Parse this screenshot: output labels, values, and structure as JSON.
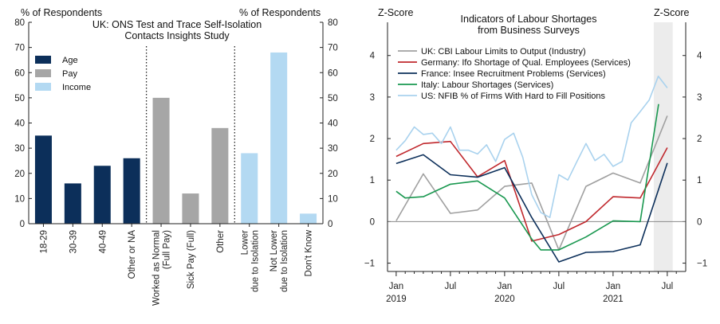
{
  "chart_data": [
    {
      "type": "bar",
      "title": "UK: ONS Test and Trace Self-Isolation Contacts Insights Study",
      "title_lines": [
        "UK: ONS Test and Trace Self-Isolation",
        "Contacts Insights Study"
      ],
      "ylabel_left": "% of Respondents",
      "ylabel_right": "% of Respondents",
      "ylim": [
        0,
        80
      ],
      "yticks": [
        0,
        10,
        20,
        30,
        40,
        50,
        60,
        70,
        80
      ],
      "legend": [
        {
          "name": "Age",
          "color": "#0c2f5a"
        },
        {
          "name": "Pay",
          "color": "#a6a6a6"
        },
        {
          "name": "Income",
          "color": "#b3d9f2"
        }
      ],
      "groups": [
        {
          "name": "Age",
          "color": "#0c2f5a",
          "categories": [
            [
              "18-29"
            ],
            [
              "30-39"
            ],
            [
              "40-49"
            ],
            [
              "Other or NA"
            ]
          ],
          "values": [
            35,
            16,
            23,
            26
          ]
        },
        {
          "name": "Pay",
          "color": "#a6a6a6",
          "categories": [
            [
              "Worked as Normal",
              "(Full Pay)"
            ],
            [
              "Sick Pay (Full)"
            ],
            [
              "Other"
            ]
          ],
          "values": [
            50,
            12,
            38
          ]
        },
        {
          "name": "Income",
          "color": "#b3d9f2",
          "categories": [
            [
              "Lower",
              "due to Isolation"
            ],
            [
              "Not Lower",
              "due to Isolation"
            ],
            [
              "Don't Know"
            ]
          ],
          "values": [
            28,
            68,
            4
          ]
        }
      ]
    },
    {
      "type": "line",
      "title": "Indicators of Labour Shortages from Business Surveys",
      "title_lines": [
        "Indicators of Labour Shortages",
        "from Business Surveys"
      ],
      "ylabel_left": "Z-Score",
      "ylabel_right": "Z-Score",
      "ylim": [
        -1.2,
        4.8
      ],
      "yticks": [
        -1,
        0,
        1,
        2,
        3,
        4
      ],
      "xlim": [
        2018.92,
        2021.67
      ],
      "xticks": [
        {
          "x": 2019.0,
          "label": [
            "Jan",
            "2019"
          ]
        },
        {
          "x": 2019.5,
          "label": [
            "Jul",
            ""
          ]
        },
        {
          "x": 2020.0,
          "label": [
            "Jan",
            "2020"
          ]
        },
        {
          "x": 2020.5,
          "label": [
            "Jul",
            ""
          ]
        },
        {
          "x": 2021.0,
          "label": [
            "Jan",
            "2021"
          ]
        },
        {
          "x": 2021.5,
          "label": [
            "Jul",
            ""
          ]
        }
      ],
      "shaded_region": [
        2021.375,
        2021.55
      ],
      "series": [
        {
          "name": "UK: CBI Labour Limits to Output (Industry)",
          "color": "#a0a0a0",
          "x": [
            2019.0,
            2019.25,
            2019.5,
            2019.75,
            2020.0,
            2020.25,
            2020.5,
            2020.75,
            2021.0,
            2021.25,
            2021.5
          ],
          "y": [
            0.02,
            1.15,
            0.2,
            0.28,
            0.85,
            0.93,
            -0.68,
            0.85,
            1.17,
            0.93,
            2.55
          ]
        },
        {
          "name": "Germany: Ifo Shortage of Qual. Employees (Services)",
          "color": "#c0282d",
          "x": [
            2019.0,
            2019.25,
            2019.5,
            2019.75,
            2020.0,
            2020.25,
            2020.5,
            2020.75,
            2021.0,
            2021.25,
            2021.5
          ],
          "y": [
            1.57,
            1.88,
            1.93,
            1.08,
            1.47,
            -0.47,
            -0.31,
            0.0,
            0.6,
            0.57,
            1.78
          ]
        },
        {
          "name": "France: Insee Recruitment Problems (Services)",
          "color": "#0c2f5a",
          "x": [
            2019.0,
            2019.25,
            2019.5,
            2019.75,
            2020.0,
            2020.25,
            2020.5,
            2020.75,
            2021.0,
            2021.25,
            2021.5
          ],
          "y": [
            1.4,
            1.61,
            1.13,
            1.07,
            1.3,
            0.1,
            -0.97,
            -0.74,
            -0.72,
            -0.56,
            1.41
          ]
        },
        {
          "name": "Italy: Labour Shortages (Services)",
          "color": "#1a9850",
          "x": [
            2019.0,
            2019.083,
            2019.25,
            2019.5,
            2019.75,
            2020.0,
            2020.25,
            2020.333,
            2020.5,
            2020.75,
            2021.0,
            2021.25,
            2021.42
          ],
          "y": [
            0.73,
            0.57,
            0.6,
            0.9,
            0.98,
            0.57,
            -0.42,
            -0.68,
            -0.68,
            -0.37,
            0.02,
            0.0,
            2.83
          ]
        },
        {
          "name": "US: NFIB % of Firms With Hard to Fill Positions",
          "color": "#a9d2ee",
          "x": [
            2019.0,
            2019.083,
            2019.167,
            2019.25,
            2019.333,
            2019.417,
            2019.5,
            2019.583,
            2019.667,
            2019.75,
            2019.833,
            2019.917,
            2020.0,
            2020.083,
            2020.167,
            2020.25,
            2020.333,
            2020.417,
            2020.5,
            2020.583,
            2020.667,
            2020.75,
            2020.833,
            2020.917,
            2021.0,
            2021.083,
            2021.167,
            2021.25,
            2021.333,
            2021.417,
            2021.5
          ],
          "y": [
            1.72,
            1.95,
            2.28,
            2.1,
            2.13,
            1.88,
            2.28,
            1.72,
            1.72,
            1.63,
            1.85,
            1.45,
            1.98,
            2.13,
            1.55,
            0.65,
            0.22,
            0.1,
            1.13,
            1.0,
            1.45,
            1.88,
            1.47,
            1.62,
            1.33,
            1.45,
            2.38,
            2.65,
            2.93,
            3.5,
            3.22
          ]
        }
      ]
    }
  ]
}
